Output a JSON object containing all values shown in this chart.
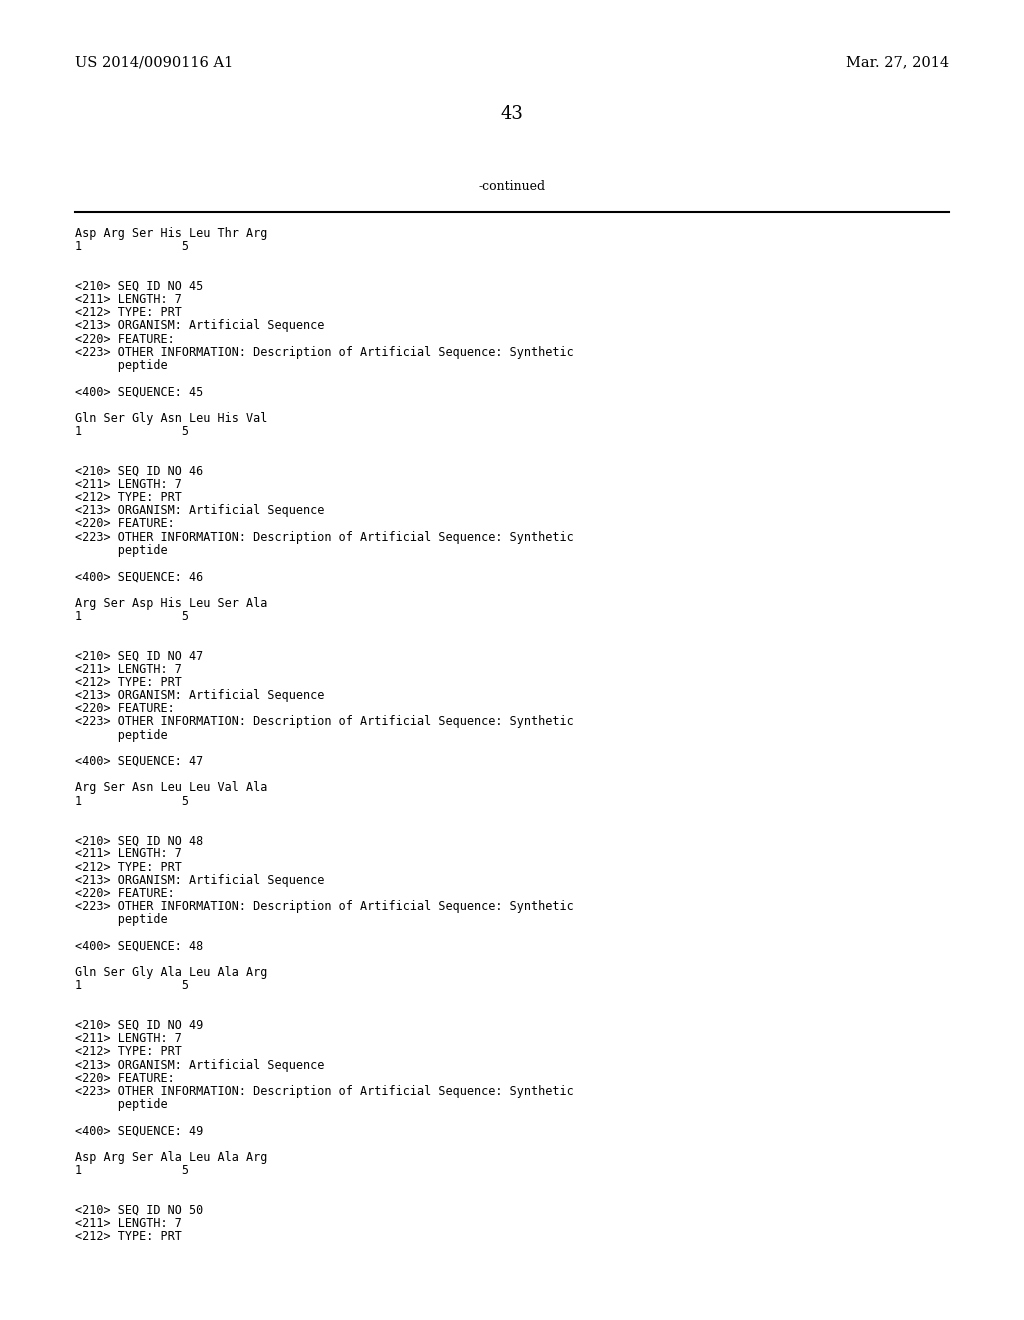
{
  "background_color": "#ffffff",
  "header_left": "US 2014/0090116 A1",
  "header_right": "Mar. 27, 2014",
  "page_number": "43",
  "continued_label": "-continued",
  "content_lines": [
    "Asp Arg Ser His Leu Thr Arg",
    "1              5",
    "",
    "",
    "<210> SEQ ID NO 45",
    "<211> LENGTH: 7",
    "<212> TYPE: PRT",
    "<213> ORGANISM: Artificial Sequence",
    "<220> FEATURE:",
    "<223> OTHER INFORMATION: Description of Artificial Sequence: Synthetic",
    "      peptide",
    "",
    "<400> SEQUENCE: 45",
    "",
    "Gln Ser Gly Asn Leu His Val",
    "1              5",
    "",
    "",
    "<210> SEQ ID NO 46",
    "<211> LENGTH: 7",
    "<212> TYPE: PRT",
    "<213> ORGANISM: Artificial Sequence",
    "<220> FEATURE:",
    "<223> OTHER INFORMATION: Description of Artificial Sequence: Synthetic",
    "      peptide",
    "",
    "<400> SEQUENCE: 46",
    "",
    "Arg Ser Asp His Leu Ser Ala",
    "1              5",
    "",
    "",
    "<210> SEQ ID NO 47",
    "<211> LENGTH: 7",
    "<212> TYPE: PRT",
    "<213> ORGANISM: Artificial Sequence",
    "<220> FEATURE:",
    "<223> OTHER INFORMATION: Description of Artificial Sequence: Synthetic",
    "      peptide",
    "",
    "<400> SEQUENCE: 47",
    "",
    "Arg Ser Asn Leu Leu Val Ala",
    "1              5",
    "",
    "",
    "<210> SEQ ID NO 48",
    "<211> LENGTH: 7",
    "<212> TYPE: PRT",
    "<213> ORGANISM: Artificial Sequence",
    "<220> FEATURE:",
    "<223> OTHER INFORMATION: Description of Artificial Sequence: Synthetic",
    "      peptide",
    "",
    "<400> SEQUENCE: 48",
    "",
    "Gln Ser Gly Ala Leu Ala Arg",
    "1              5",
    "",
    "",
    "<210> SEQ ID NO 49",
    "<211> LENGTH: 7",
    "<212> TYPE: PRT",
    "<213> ORGANISM: Artificial Sequence",
    "<220> FEATURE:",
    "<223> OTHER INFORMATION: Description of Artificial Sequence: Synthetic",
    "      peptide",
    "",
    "<400> SEQUENCE: 49",
    "",
    "Asp Arg Ser Ala Leu Ala Arg",
    "1              5",
    "",
    "",
    "<210> SEQ ID NO 50",
    "<211> LENGTH: 7",
    "<212> TYPE: PRT"
  ],
  "header_fontsize": 10.5,
  "page_num_fontsize": 13,
  "continued_fontsize": 9,
  "content_fontsize": 8.5
}
